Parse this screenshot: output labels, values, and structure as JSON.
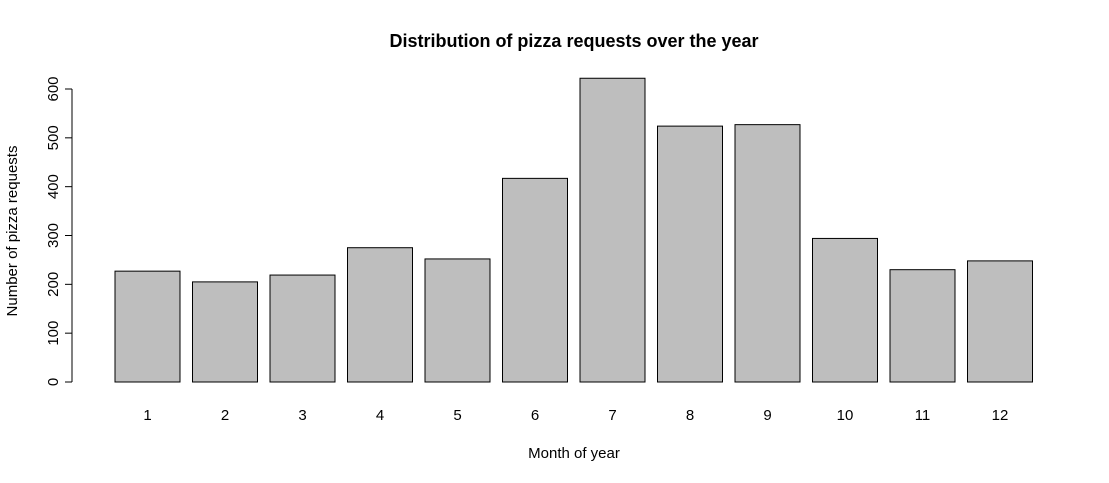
{
  "chart_data": {
    "type": "bar",
    "title": "Distribution of pizza requests over the year",
    "xlabel": "Month of year",
    "ylabel": "Number of pizza requests",
    "categories": [
      "1",
      "2",
      "3",
      "4",
      "5",
      "6",
      "7",
      "8",
      "9",
      "10",
      "11",
      "12"
    ],
    "values": [
      227,
      205,
      219,
      275,
      252,
      417,
      622,
      524,
      527,
      294,
      230,
      248
    ],
    "yticks": [
      0,
      100,
      200,
      300,
      400,
      500,
      600
    ],
    "ylim": [
      0,
      622
    ],
    "grid": false,
    "bar_color": "#bebebe",
    "border_color": "#000000"
  }
}
